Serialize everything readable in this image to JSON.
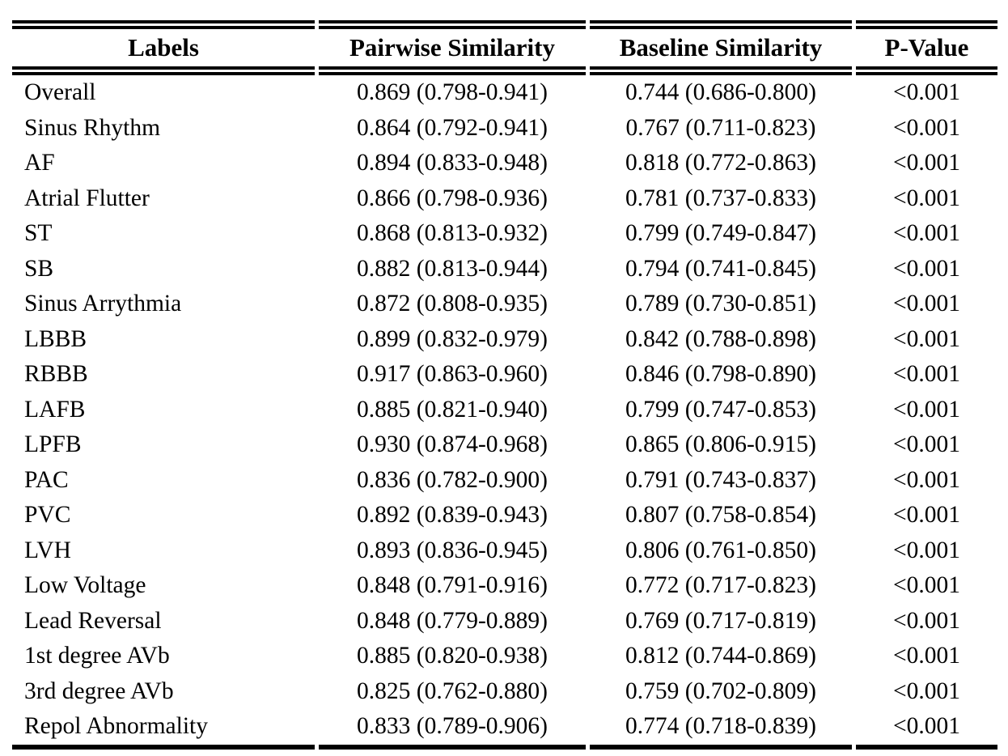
{
  "page": {
    "background": "#ffffff",
    "text_color": "#000000"
  },
  "table": {
    "name": "label-similarity-table",
    "columns": [
      {
        "key": "label",
        "label": "Labels"
      },
      {
        "key": "pairwise",
        "label": "Pairwise Similarity"
      },
      {
        "key": "baseline",
        "label": "Baseline Similarity"
      },
      {
        "key": "pvalue",
        "label": "P-Value"
      }
    ],
    "rows": [
      {
        "label": "Overall",
        "pairwise": "0.869 (0.798-0.941)",
        "baseline": "0.744 (0.686-0.800)",
        "pvalue": "<0.001"
      },
      {
        "label": "Sinus Rhythm",
        "pairwise": "0.864 (0.792-0.941)",
        "baseline": "0.767 (0.711-0.823)",
        "pvalue": "<0.001"
      },
      {
        "label": "AF",
        "pairwise": "0.894 (0.833-0.948)",
        "baseline": "0.818 (0.772-0.863)",
        "pvalue": "<0.001"
      },
      {
        "label": "Atrial Flutter",
        "pairwise": "0.866 (0.798-0.936)",
        "baseline": "0.781 (0.737-0.833)",
        "pvalue": "<0.001"
      },
      {
        "label": "ST",
        "pairwise": "0.868 (0.813-0.932)",
        "baseline": "0.799 (0.749-0.847)",
        "pvalue": "<0.001"
      },
      {
        "label": "SB",
        "pairwise": "0.882 (0.813-0.944)",
        "baseline": "0.794 (0.741-0.845)",
        "pvalue": "<0.001"
      },
      {
        "label": "Sinus Arrythmia",
        "pairwise": "0.872 (0.808-0.935)",
        "baseline": "0.789 (0.730-0.851)",
        "pvalue": "<0.001"
      },
      {
        "label": "LBBB",
        "pairwise": "0.899 (0.832-0.979)",
        "baseline": "0.842 (0.788-0.898)",
        "pvalue": "<0.001"
      },
      {
        "label": "RBBB",
        "pairwise": "0.917 (0.863-0.960)",
        "baseline": "0.846 (0.798-0.890)",
        "pvalue": "<0.001"
      },
      {
        "label": "LAFB",
        "pairwise": "0.885 (0.821-0.940)",
        "baseline": "0.799 (0.747-0.853)",
        "pvalue": "<0.001"
      },
      {
        "label": "LPFB",
        "pairwise": "0.930 (0.874-0.968)",
        "baseline": "0.865 (0.806-0.915)",
        "pvalue": "<0.001"
      },
      {
        "label": "PAC",
        "pairwise": "0.836 (0.782-0.900)",
        "baseline": "0.791 (0.743-0.837)",
        "pvalue": "<0.001"
      },
      {
        "label": "PVC",
        "pairwise": "0.892 (0.839-0.943)",
        "baseline": "0.807 (0.758-0.854)",
        "pvalue": "<0.001"
      },
      {
        "label": "LVH",
        "pairwise": "0.893 (0.836-0.945)",
        "baseline": "0.806 (0.761-0.850)",
        "pvalue": "<0.001"
      },
      {
        "label": "Low Voltage",
        "pairwise": "0.848 (0.791-0.916)",
        "baseline": "0.772 (0.717-0.823)",
        "pvalue": "<0.001"
      },
      {
        "label": "Lead Reversal",
        "pairwise": "0.848 (0.779-0.889)",
        "baseline": "0.769 (0.717-0.819)",
        "pvalue": "<0.001"
      },
      {
        "label": "1st degree AVb",
        "pairwise": "0.885 (0.820-0.938)",
        "baseline": "0.812 (0.744-0.869)",
        "pvalue": "<0.001"
      },
      {
        "label": "3rd degree AVb",
        "pairwise": "0.825 (0.762-0.880)",
        "baseline": "0.759 (0.702-0.809)",
        "pvalue": "<0.001"
      },
      {
        "label": "Repol Abnormality",
        "pairwise": "0.833 (0.789-0.906)",
        "baseline": "0.774 (0.718-0.839)",
        "pvalue": "<0.001"
      }
    ]
  }
}
